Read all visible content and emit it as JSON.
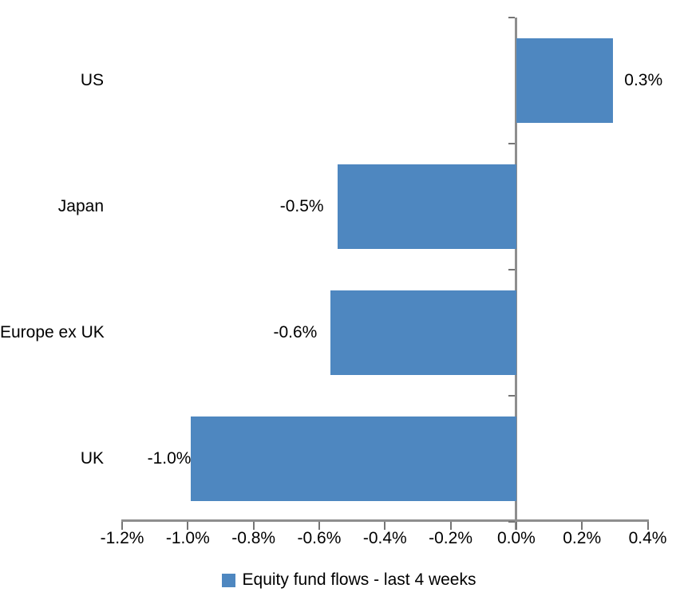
{
  "chart_data": {
    "type": "bar",
    "orientation": "horizontal",
    "title": "",
    "categories": [
      "US",
      "Japan",
      "Europe ex UK",
      "UK"
    ],
    "series": [
      {
        "name": "Equity fund flows - last 4 weeks",
        "values": [
          0.3,
          -0.5,
          -0.6,
          -1.0
        ],
        "values_precise_pct": [
          0.295,
          -0.545,
          -0.565,
          -0.99
        ],
        "data_labels": [
          "0.3%",
          "-0.5%",
          "-0.6%",
          "-1.0%"
        ]
      }
    ],
    "xlabel": "",
    "ylabel": "",
    "xlim": [
      -1.2,
      0.4
    ],
    "x_ticks": [
      -1.2,
      -1.0,
      -0.8,
      -0.6,
      -0.4,
      -0.2,
      0.0,
      0.2,
      0.4
    ],
    "x_tick_labels": [
      "-1.2%",
      "-1.0%",
      "-0.8%",
      "-0.6%",
      "-0.4%",
      "-0.2%",
      "0.0%",
      "0.2%",
      "0.4%"
    ],
    "grid": false,
    "legend_position": "bottom",
    "colors": {
      "bar": "#4E87C0",
      "axis": "#8E8E8E",
      "tick": "#757575",
      "text": "#000000",
      "background": "#FFFFFF"
    }
  },
  "legend": {
    "items": [
      {
        "label": "Equity fund flows - last 4 weeks",
        "color": "#4E87C0"
      }
    ]
  }
}
